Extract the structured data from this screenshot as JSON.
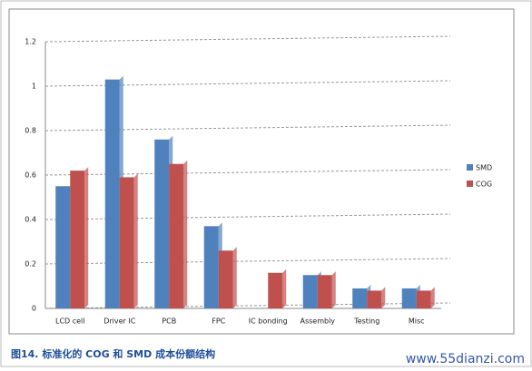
{
  "chart_data": {
    "type": "bar",
    "categories": [
      "LCD cell",
      "Driver IC",
      "PCB",
      "FPC",
      "IC bonding",
      "Assembly",
      "Testing",
      "Misc"
    ],
    "series": [
      {
        "name": "SMD",
        "color": "#4f81bd",
        "values": [
          0.55,
          1.03,
          0.76,
          0.37,
          0.0,
          0.15,
          0.09,
          0.09
        ]
      },
      {
        "name": "COG",
        "color": "#c0504d",
        "values": [
          0.62,
          0.59,
          0.65,
          0.26,
          0.16,
          0.15,
          0.08,
          0.08
        ]
      }
    ],
    "ylim": [
      0,
      1.2
    ],
    "yticks": [
      0,
      0.2,
      0.4,
      0.6,
      0.8,
      1,
      1.2
    ],
    "grid": true,
    "legend": "right"
  },
  "caption": "图14. 标准化的 COG 和 SMD 成本份额结构",
  "watermark": "www.55dianzi.com"
}
